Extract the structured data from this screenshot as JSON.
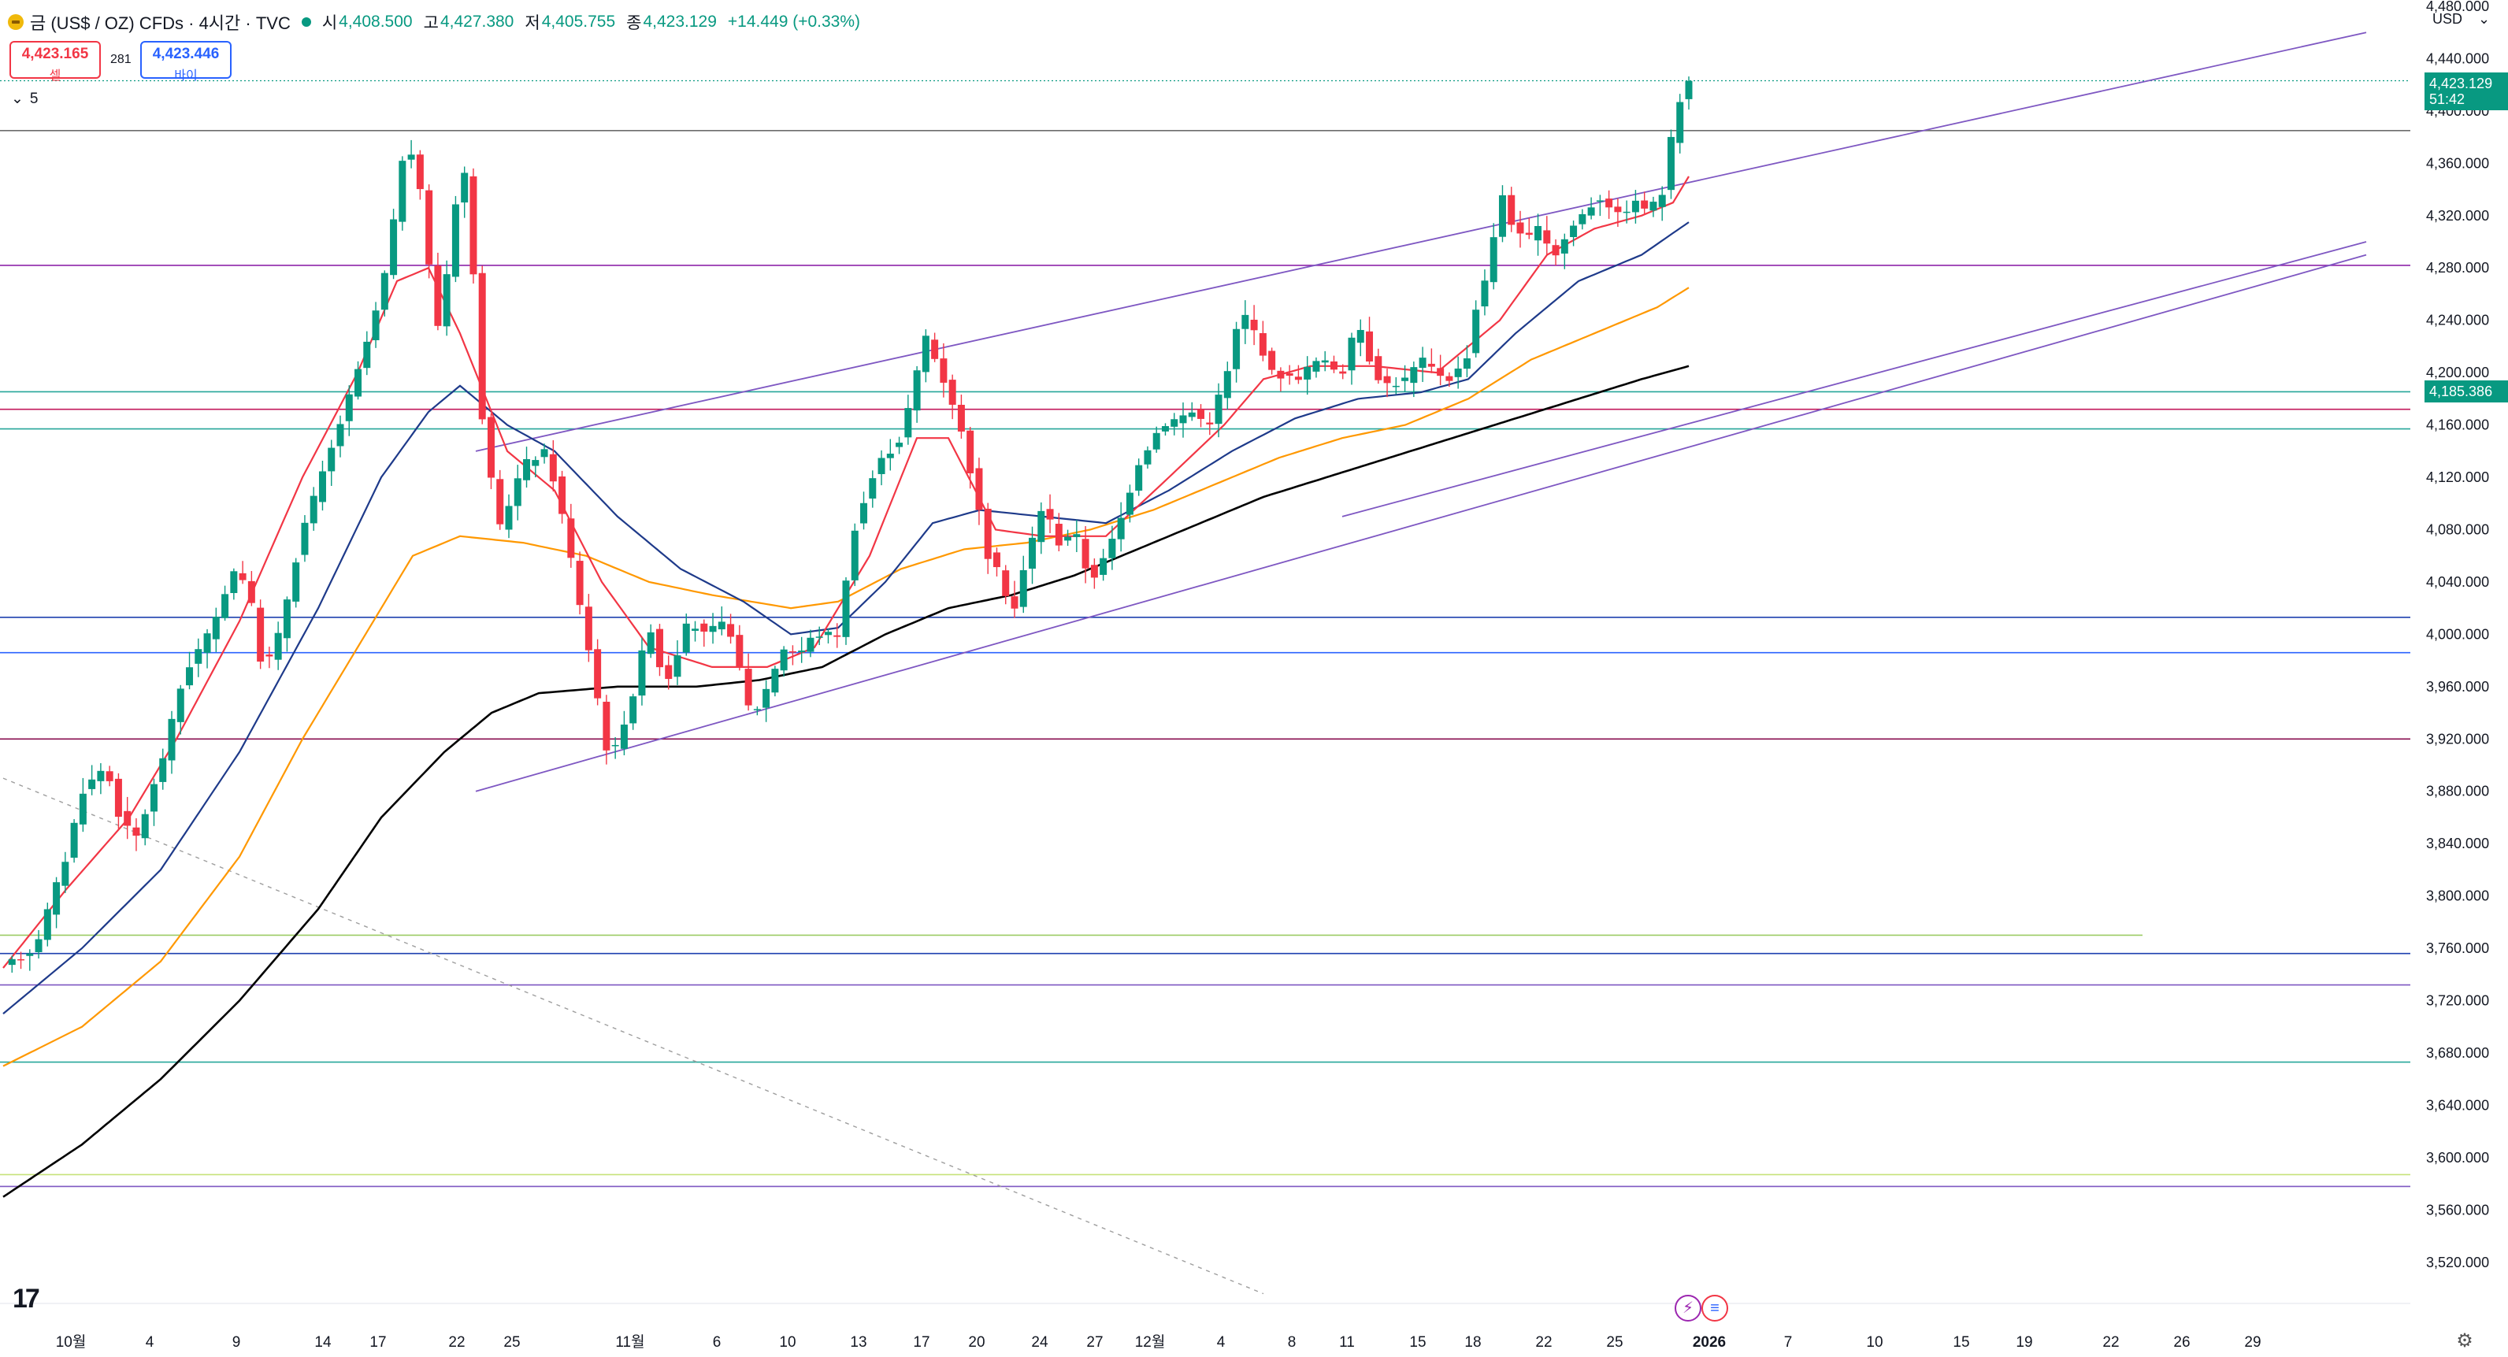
{
  "header": {
    "title": "금 (US$ / OZ) CFDs · 4시간 · TVC",
    "ohlc": [
      {
        "k": "시",
        "v": "4,408.500"
      },
      {
        "k": "고",
        "v": "4,427.380"
      },
      {
        "k": "저",
        "v": "4,405.755"
      },
      {
        "k": "종",
        "v": "4,423.129"
      }
    ],
    "change": "+14.449 (+0.33%)"
  },
  "trade": {
    "sell_price": "4,423.165",
    "sell_label": "셀",
    "buy_price": "4,423.446",
    "buy_label": "바이",
    "spread": "281"
  },
  "indicator_count": "5",
  "currency": "USD",
  "badges": {
    "last_price": "4,423.129",
    "countdown": "51:42",
    "level": "4,185.386"
  },
  "colors": {
    "up": "#089981",
    "down": "#f23645",
    "ema20": "#f23645",
    "ema50": "#1e3a8a",
    "ema100": "#ff9800",
    "ema200": "#000000",
    "channel": "#7e57c2"
  },
  "icons": {
    "settings": "gear-icon",
    "logo": "tradingview-logo-icon",
    "event1": "flash-icon",
    "event2": "us-flag-icon"
  },
  "chart_data": {
    "type": "candlestick",
    "y_range": [
      3500,
      4480
    ],
    "y_ticks": [
      3520,
      3560,
      3600,
      3640,
      3680,
      3720,
      3760,
      3800,
      3840,
      3880,
      3920,
      3960,
      4000,
      4040,
      4080,
      4120,
      4160,
      4200,
      4240,
      4280,
      4320,
      4360,
      4400,
      4440,
      4480
    ],
    "y_tick_labels": [
      "3,520.000",
      "3,560.000",
      "3,600.000",
      "3,640.000",
      "3,680.000",
      "3,720.000",
      "3,760.000",
      "3,800.000",
      "3,840.000",
      "3,880.000",
      "3,920.000",
      "3,960.000",
      "4,000.000",
      "4,040.000",
      "4,080.000",
      "4,120.000",
      "4,160.000",
      "4,200.000",
      "4,240.000",
      "4,280.000",
      "4,320.000",
      "4,360.000",
      "4,400.000",
      "4,440.000",
      "4,480.000"
    ],
    "x_labels": [
      "10월",
      "4",
      "9",
      "14",
      "17",
      "22",
      "25",
      "11월",
      "6",
      "10",
      "13",
      "17",
      "20",
      "24",
      "27",
      "12월",
      "4",
      "8",
      "11",
      "15",
      "18",
      "22",
      "25",
      "2026",
      "7",
      "10",
      "15",
      "19",
      "22",
      "26",
      "29"
    ],
    "x_label_index": [
      0,
      10,
      21,
      32,
      39,
      49,
      56,
      71,
      82,
      91,
      100,
      108,
      115,
      123,
      130,
      137,
      146,
      155,
      162,
      171,
      178,
      187,
      196,
      208,
      218,
      229,
      240,
      248,
      259,
      268,
      277
    ],
    "candle_count": 190,
    "anchors": [
      [
        0,
        3745
      ],
      [
        4,
        3760
      ],
      [
        8,
        3830
      ],
      [
        10,
        3880
      ],
      [
        13,
        3900
      ],
      [
        15,
        3855
      ],
      [
        17,
        3845
      ],
      [
        20,
        3900
      ],
      [
        23,
        3970
      ],
      [
        27,
        4010
      ],
      [
        29,
        4050
      ],
      [
        31,
        4040
      ],
      [
        33,
        3970
      ],
      [
        35,
        4000
      ],
      [
        38,
        4080
      ],
      [
        41,
        4130
      ],
      [
        45,
        4200
      ],
      [
        48,
        4260
      ],
      [
        50,
        4330
      ],
      [
        51,
        4380
      ],
      [
        53,
        4340
      ],
      [
        55,
        4230
      ],
      [
        57,
        4300
      ],
      [
        58,
        4370
      ],
      [
        59,
        4340
      ],
      [
        61,
        4150
      ],
      [
        63,
        4080
      ],
      [
        66,
        4130
      ],
      [
        69,
        4140
      ],
      [
        71,
        4090
      ],
      [
        74,
        4000
      ],
      [
        77,
        3900
      ],
      [
        80,
        3955
      ],
      [
        82,
        4010
      ],
      [
        84,
        3960
      ],
      [
        87,
        4010
      ],
      [
        89,
        4000
      ],
      [
        92,
        4010
      ],
      [
        95,
        3935
      ],
      [
        97,
        3960
      ],
      [
        99,
        3990
      ],
      [
        101,
        3985
      ],
      [
        103,
        4000
      ],
      [
        106,
        4000
      ],
      [
        108,
        4080
      ],
      [
        111,
        4130
      ],
      [
        114,
        4150
      ],
      [
        116,
        4200
      ],
      [
        117,
        4230
      ],
      [
        119,
        4200
      ],
      [
        121,
        4170
      ],
      [
        123,
        4120
      ],
      [
        125,
        4060
      ],
      [
        127,
        4040
      ],
      [
        128,
        4010
      ],
      [
        130,
        4060
      ],
      [
        132,
        4100
      ],
      [
        134,
        4070
      ],
      [
        136,
        4080
      ],
      [
        138,
        4040
      ],
      [
        140,
        4060
      ],
      [
        142,
        4090
      ],
      [
        144,
        4130
      ],
      [
        147,
        4160
      ],
      [
        151,
        4170
      ],
      [
        153,
        4160
      ],
      [
        156,
        4210
      ],
      [
        157,
        4250
      ],
      [
        159,
        4230
      ],
      [
        161,
        4200
      ],
      [
        164,
        4195
      ],
      [
        167,
        4210
      ],
      [
        170,
        4200
      ],
      [
        172,
        4240
      ],
      [
        174,
        4200
      ],
      [
        176,
        4190
      ],
      [
        178,
        4195
      ],
      [
        180,
        4210
      ],
      [
        182,
        4200
      ],
      [
        184,
        4195
      ],
      [
        186,
        4215
      ],
      [
        187,
        4250
      ],
      [
        189,
        4290
      ],
      [
        190,
        4345
      ],
      [
        191,
        4320
      ],
      [
        193,
        4300
      ],
      [
        195,
        4310
      ],
      [
        197,
        4290
      ],
      [
        199,
        4310
      ],
      [
        201,
        4325
      ],
      [
        203,
        4335
      ],
      [
        205,
        4320
      ],
      [
        207,
        4330
      ],
      [
        209,
        4325
      ],
      [
        211,
        4340
      ],
      [
        212,
        4390
      ],
      [
        213,
        4412
      ],
      [
        214,
        4423
      ]
    ],
    "ema20": [
      [
        0,
        3745
      ],
      [
        8,
        3805
      ],
      [
        16,
        3860
      ],
      [
        22,
        3920
      ],
      [
        30,
        4010
      ],
      [
        38,
        4120
      ],
      [
        45,
        4200
      ],
      [
        50,
        4270
      ],
      [
        54,
        4280
      ],
      [
        58,
        4230
      ],
      [
        64,
        4140
      ],
      [
        70,
        4110
      ],
      [
        76,
        4040
      ],
      [
        82,
        3990
      ],
      [
        90,
        3975
      ],
      [
        97,
        3975
      ],
      [
        103,
        3990
      ],
      [
        110,
        4060
      ],
      [
        116,
        4150
      ],
      [
        120,
        4150
      ],
      [
        126,
        4080
      ],
      [
        132,
        4075
      ],
      [
        140,
        4075
      ],
      [
        148,
        4120
      ],
      [
        155,
        4160
      ],
      [
        160,
        4195
      ],
      [
        166,
        4205
      ],
      [
        174,
        4205
      ],
      [
        182,
        4200
      ],
      [
        190,
        4240
      ],
      [
        196,
        4290
      ],
      [
        202,
        4310
      ],
      [
        208,
        4320
      ],
      [
        212,
        4330
      ],
      [
        214,
        4350
      ]
    ],
    "ema50": [
      [
        0,
        3710
      ],
      [
        10,
        3760
      ],
      [
        20,
        3820
      ],
      [
        30,
        3910
      ],
      [
        40,
        4020
      ],
      [
        48,
        4120
      ],
      [
        54,
        4170
      ],
      [
        58,
        4190
      ],
      [
        64,
        4160
      ],
      [
        70,
        4140
      ],
      [
        78,
        4090
      ],
      [
        86,
        4050
      ],
      [
        94,
        4025
      ],
      [
        100,
        4000
      ],
      [
        106,
        4005
      ],
      [
        112,
        4040
      ],
      [
        118,
        4085
      ],
      [
        124,
        4095
      ],
      [
        132,
        4090
      ],
      [
        140,
        4085
      ],
      [
        148,
        4110
      ],
      [
        156,
        4140
      ],
      [
        164,
        4165
      ],
      [
        172,
        4180
      ],
      [
        180,
        4185
      ],
      [
        186,
        4195
      ],
      [
        192,
        4230
      ],
      [
        200,
        4270
      ],
      [
        208,
        4290
      ],
      [
        214,
        4315
      ]
    ],
    "ema100": [
      [
        0,
        3670
      ],
      [
        10,
        3700
      ],
      [
        20,
        3750
      ],
      [
        30,
        3830
      ],
      [
        38,
        3920
      ],
      [
        46,
        4000
      ],
      [
        52,
        4060
      ],
      [
        58,
        4075
      ],
      [
        66,
        4070
      ],
      [
        74,
        4060
      ],
      [
        82,
        4040
      ],
      [
        90,
        4030
      ],
      [
        100,
        4020
      ],
      [
        106,
        4025
      ],
      [
        114,
        4050
      ],
      [
        122,
        4065
      ],
      [
        130,
        4070
      ],
      [
        138,
        4080
      ],
      [
        146,
        4095
      ],
      [
        154,
        4115
      ],
      [
        162,
        4135
      ],
      [
        170,
        4150
      ],
      [
        178,
        4160
      ],
      [
        186,
        4180
      ],
      [
        194,
        4210
      ],
      [
        202,
        4230
      ],
      [
        210,
        4250
      ],
      [
        214,
        4265
      ]
    ],
    "ema200": [
      [
        0,
        3570
      ],
      [
        10,
        3610
      ],
      [
        20,
        3660
      ],
      [
        30,
        3720
      ],
      [
        40,
        3790
      ],
      [
        48,
        3860
      ],
      [
        56,
        3910
      ],
      [
        62,
        3940
      ],
      [
        68,
        3955
      ],
      [
        78,
        3960
      ],
      [
        88,
        3960
      ],
      [
        96,
        3965
      ],
      [
        104,
        3975
      ],
      [
        112,
        4000
      ],
      [
        120,
        4020
      ],
      [
        128,
        4030
      ],
      [
        136,
        4045
      ],
      [
        144,
        4065
      ],
      [
        152,
        4085
      ],
      [
        160,
        4105
      ],
      [
        168,
        4120
      ],
      [
        176,
        4135
      ],
      [
        184,
        4150
      ],
      [
        192,
        4165
      ],
      [
        200,
        4180
      ],
      [
        208,
        4195
      ],
      [
        214,
        4205
      ]
    ],
    "channel_upper": [
      [
        60,
        4140
      ],
      [
        300,
        4460
      ]
    ],
    "channel_lower": [
      [
        60,
        3880
      ],
      [
        300,
        4290
      ]
    ],
    "channel_mid": [
      [
        170,
        4090
      ],
      [
        300,
        4300
      ]
    ],
    "downtrend": [
      [
        0,
        3890
      ],
      [
        160,
        3496
      ]
    ],
    "hlines": [
      {
        "y": 4385,
        "color": "#6d6d6d"
      },
      {
        "y": 4282,
        "color": "#8e24aa"
      },
      {
        "y": 4185.4,
        "color": "#26a69a"
      },
      {
        "y": 4172,
        "color": "#c2185b"
      },
      {
        "y": 4157,
        "color": "#26a69a"
      },
      {
        "y": 4013,
        "color": "#1e40af"
      },
      {
        "y": 3986,
        "color": "#2962ff"
      },
      {
        "y": 3920,
        "color": "#880e4f"
      },
      {
        "y": 3770,
        "color": "#9ccc65",
        "end": 2720
      },
      {
        "y": 3756,
        "color": "#1e40af"
      },
      {
        "y": 3732,
        "color": "#7e57c2"
      },
      {
        "y": 3673,
        "color": "#26a69a"
      },
      {
        "y": 3587,
        "color": "#c6e27a"
      },
      {
        "y": 3578,
        "color": "#7e57c2"
      }
    ],
    "price_line": 4423.129
  }
}
